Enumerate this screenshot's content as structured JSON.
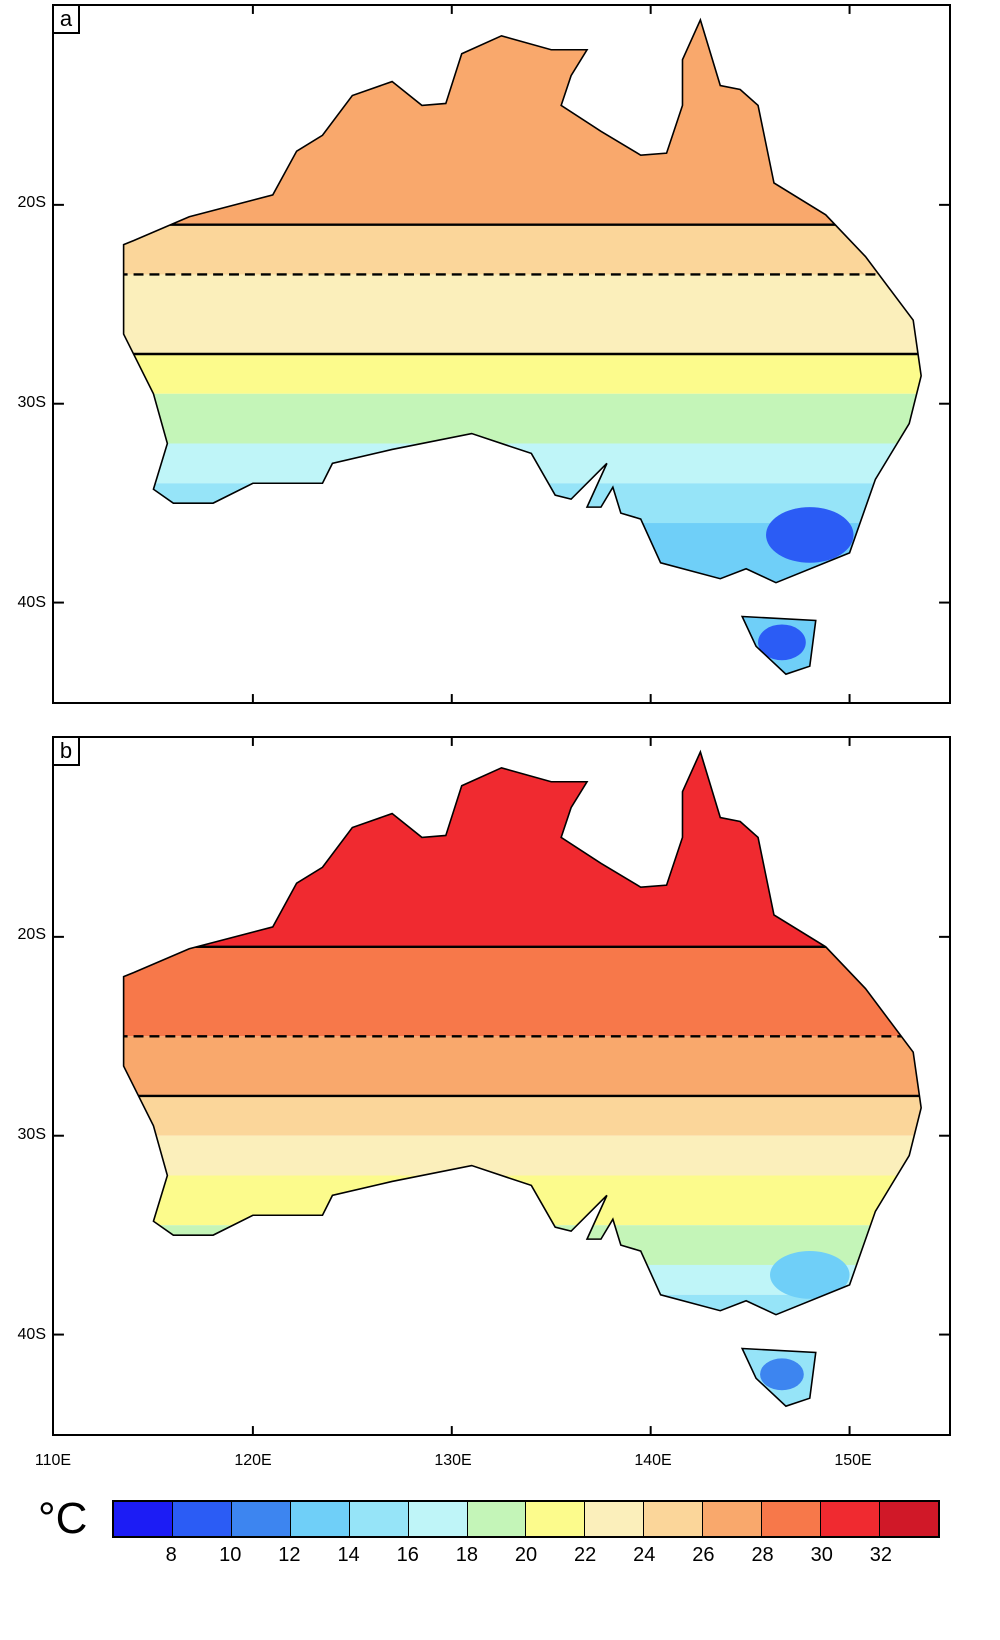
{
  "chart_data": {
    "type": "heatmap",
    "unit": "°C",
    "panels": [
      {
        "label": "a",
        "zones": [
          {
            "class": 10,
            "from_lat": -10,
            "to_lat": -21
          },
          {
            "class": 9,
            "from_lat": -21,
            "to_lat": -23.5
          },
          {
            "class": 8,
            "from_lat": -23.5,
            "to_lat": -27.5
          },
          {
            "class": 7,
            "from_lat": -27.5,
            "to_lat": -29.5
          },
          {
            "class": 6,
            "from_lat": -29.5,
            "to_lat": -32
          },
          {
            "class": 5,
            "from_lat": -32,
            "to_lat": -34
          },
          {
            "class": 4,
            "from_lat": -34,
            "to_lat": -36
          },
          {
            "class": 3,
            "from_lat": -36,
            "to_lat": -45
          }
        ],
        "blobs": [
          {
            "class": 1,
            "lon": 148,
            "lat": -36.6,
            "rlon": 2.2,
            "rlat": 1.4
          },
          {
            "class": 1,
            "lon": 146.6,
            "lat": -42,
            "rlon": 1.2,
            "rlat": 0.9
          }
        ]
      },
      {
        "label": "b",
        "zones": [
          {
            "class": 12,
            "from_lat": -10,
            "to_lat": -20.5
          },
          {
            "class": 11,
            "from_lat": -20.5,
            "to_lat": -25
          },
          {
            "class": 10,
            "from_lat": -25,
            "to_lat": -28
          },
          {
            "class": 9,
            "from_lat": -28,
            "to_lat": -30
          },
          {
            "class": 8,
            "from_lat": -30,
            "to_lat": -32
          },
          {
            "class": 7,
            "from_lat": -32,
            "to_lat": -34.5
          },
          {
            "class": 6,
            "from_lat": -34.5,
            "to_lat": -36.5
          },
          {
            "class": 5,
            "from_lat": -36.5,
            "to_lat": -38
          },
          {
            "class": 4,
            "from_lat": -38,
            "to_lat": -45
          }
        ],
        "blobs": [
          {
            "class": 3,
            "lon": 148,
            "lat": -37,
            "rlon": 2,
            "rlat": 1.2
          },
          {
            "class": 2,
            "lon": 146.6,
            "lat": -42,
            "rlon": 1.1,
            "rlat": 0.8
          }
        ]
      }
    ],
    "lon_range": [
      110,
      155
    ],
    "lat_range": [
      -45,
      -10
    ],
    "lat_ticks": [
      "20S",
      "30S",
      "40S"
    ],
    "lat_tick_values": [
      -20,
      -30,
      -40
    ],
    "lon_ticks": [
      "110E",
      "120E",
      "130E",
      "140E",
      "150E"
    ],
    "lon_tick_values": [
      110,
      120,
      130,
      140,
      150
    ],
    "colorbar": {
      "labels": [
        "8",
        "10",
        "12",
        "14",
        "16",
        "18",
        "20",
        "22",
        "24",
        "26",
        "28",
        "30",
        "32"
      ],
      "colors": [
        "#1c1cf5",
        "#2b5cf5",
        "#3d85f0",
        "#6fcff8",
        "#96e4f8",
        "#bff5f8",
        "#c4f5b8",
        "#fcfb8c",
        "#fbefbb",
        "#fbd69a",
        "#f9a86c",
        "#f7784a",
        "#f02a30",
        "#d01828"
      ]
    }
  }
}
